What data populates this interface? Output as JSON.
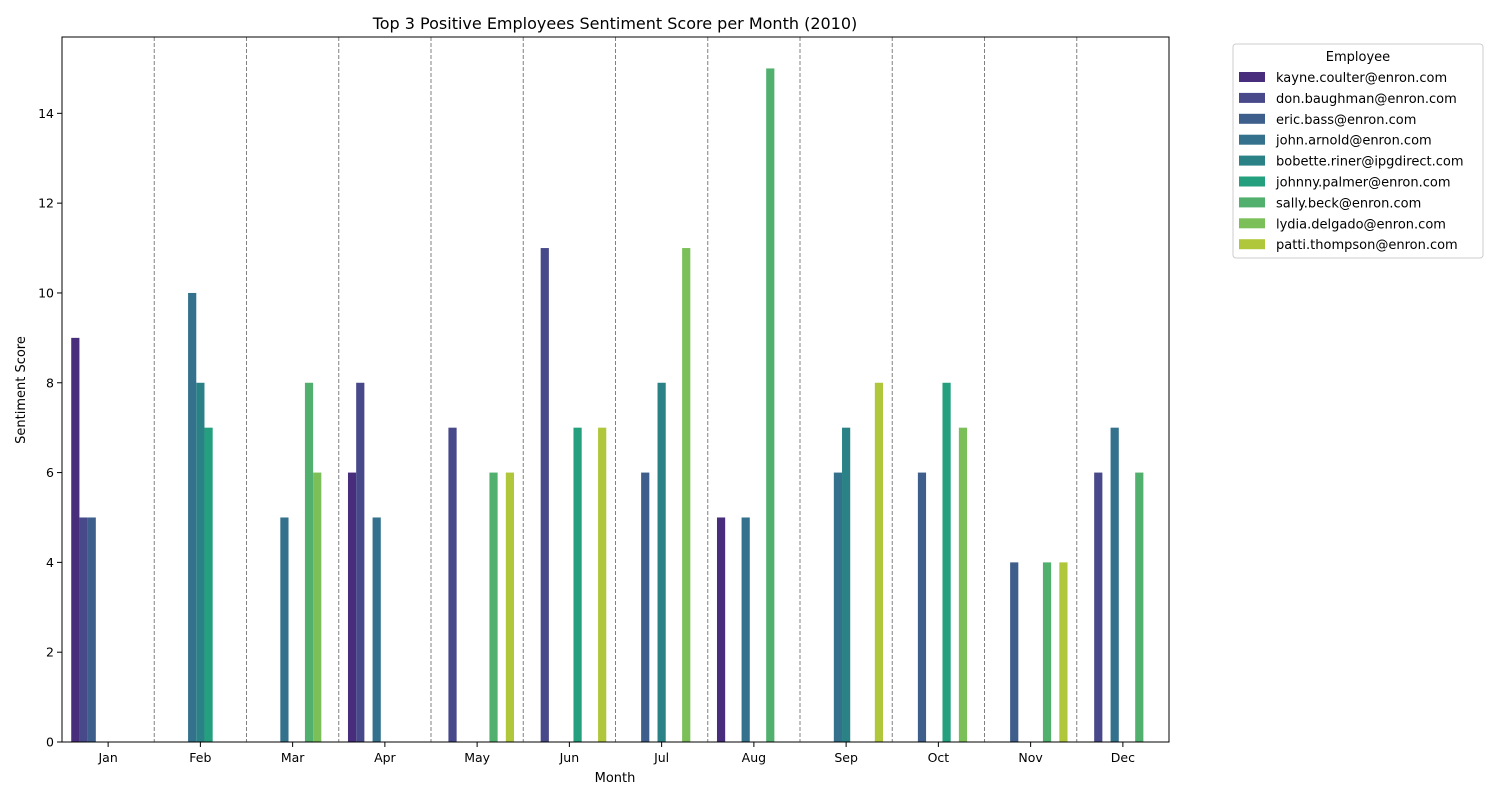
{
  "chart_data": {
    "type": "bar",
    "title": "Top 3 Positive Employees Sentiment Score per Month (2010)",
    "xlabel": "Month",
    "ylabel": "Sentiment Score",
    "ylim": [
      0,
      15.7
    ],
    "yticks": [
      0,
      2,
      4,
      6,
      8,
      10,
      12,
      14
    ],
    "grid": "vertical dashed separators between months",
    "legend_placement": "outside right, top",
    "legend_title": "Employee",
    "categories": [
      "Jan",
      "Feb",
      "Mar",
      "Apr",
      "May",
      "Jun",
      "Jul",
      "Aug",
      "Sep",
      "Oct",
      "Nov",
      "Dec"
    ],
    "series": [
      {
        "name": "kayne.coulter@enron.com",
        "color": "#472d7b",
        "values": [
          9,
          0,
          0,
          6,
          0,
          0,
          0,
          5,
          0,
          0,
          0,
          0
        ]
      },
      {
        "name": "don.baughman@enron.com",
        "color": "#48498a",
        "values": [
          5,
          0,
          0,
          8,
          7,
          11,
          0,
          0,
          0,
          0,
          0,
          6
        ]
      },
      {
        "name": "eric.bass@enron.com",
        "color": "#3e5f8c",
        "values": [
          5,
          0,
          0,
          0,
          0,
          0,
          6,
          0,
          0,
          6,
          4,
          0
        ]
      },
      {
        "name": "john.arnold@enron.com",
        "color": "#33718c",
        "values": [
          0,
          10,
          5,
          5,
          0,
          0,
          0,
          5,
          6,
          0,
          0,
          7
        ]
      },
      {
        "name": "bobette.riner@ipgdirect.com",
        "color": "#2a8286",
        "values": [
          0,
          8,
          0,
          0,
          0,
          0,
          8,
          0,
          7,
          0,
          0,
          0
        ]
      },
      {
        "name": "johnny.palmer@enron.com",
        "color": "#24a07e",
        "values": [
          0,
          7,
          0,
          0,
          0,
          7,
          0,
          0,
          0,
          8,
          0,
          0
        ]
      },
      {
        "name": "sally.beck@enron.com",
        "color": "#52b06f",
        "values": [
          0,
          0,
          8,
          0,
          6,
          0,
          0,
          15,
          0,
          0,
          4,
          6
        ]
      },
      {
        "name": "lydia.delgado@enron.com",
        "color": "#7bbf59",
        "values": [
          0,
          0,
          6,
          0,
          0,
          0,
          11,
          0,
          0,
          7,
          0,
          0
        ]
      },
      {
        "name": "patti.thompson@enron.com",
        "color": "#b0c73c",
        "values": [
          0,
          0,
          0,
          0,
          6,
          7,
          0,
          0,
          8,
          0,
          4,
          0
        ]
      }
    ]
  }
}
